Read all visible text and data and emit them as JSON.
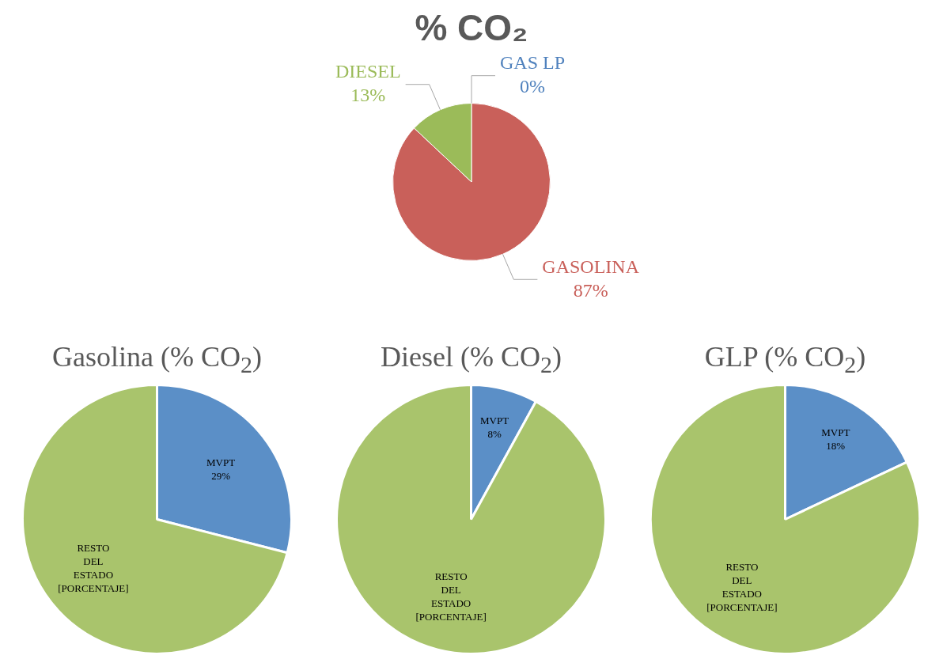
{
  "chart_data": [
    {
      "type": "pie",
      "title": "% CO₂",
      "categories": [
        "GASOLINA",
        "DIESEL",
        "GAS LP"
      ],
      "values": [
        87,
        13,
        0
      ],
      "colors": [
        "#c9605a",
        "#9bbb59",
        "#4f81bd"
      ],
      "value_labels": [
        "87%",
        "13%",
        "0%"
      ]
    },
    {
      "type": "pie",
      "title": "Gasolina (% CO$_{2}$)",
      "categories": [
        "MVPT",
        "RESTO DEL ESTADO"
      ],
      "values": [
        29,
        71
      ],
      "colors": [
        "#5b8fc7",
        "#a9c46c"
      ],
      "value_labels": [
        "29%",
        "[PORCENTAJE]"
      ]
    },
    {
      "type": "pie",
      "title": "Diesel (% CO$_{2}$)",
      "categories": [
        "MVPT",
        "RESTO DEL ESTADO"
      ],
      "values": [
        8,
        92
      ],
      "colors": [
        "#5b8fc7",
        "#a9c46c"
      ],
      "value_labels": [
        "8%",
        "[PORCENTAJE]"
      ]
    },
    {
      "type": "pie",
      "title": "GLP (% CO$_{2}$)",
      "categories": [
        "MVPT",
        "RESTO DEL ESTADO"
      ],
      "values": [
        18,
        82
      ],
      "colors": [
        "#5b8fc7",
        "#a9c46c"
      ],
      "value_labels": [
        "18%",
        "[PORCENTAJE]"
      ]
    }
  ]
}
